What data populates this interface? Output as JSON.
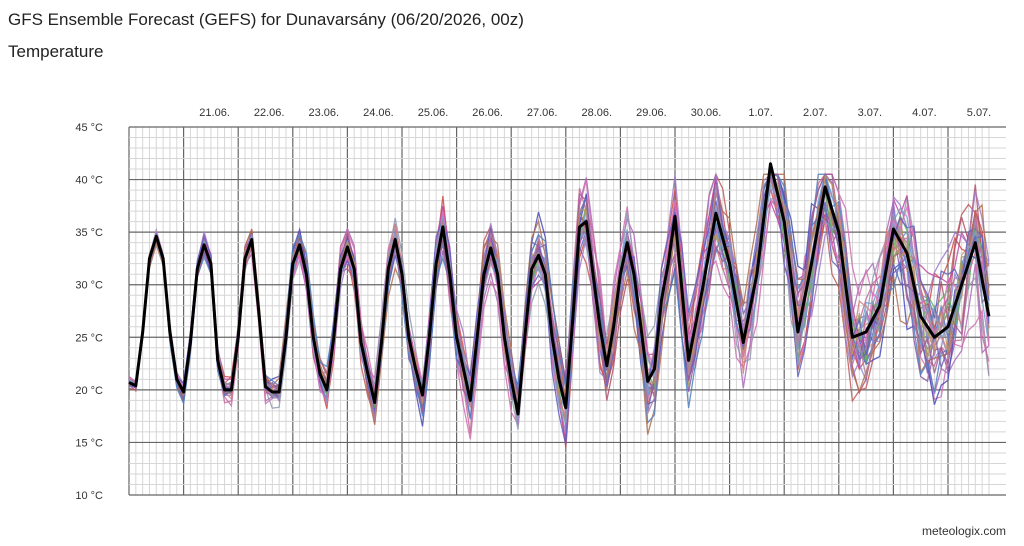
{
  "header": {
    "title": "GFS Ensemble Forecast (GEFS) for Dunavarsány (06/20/2026, 00z)",
    "subtitle": "Temperature"
  },
  "footer": {
    "credit": "meteologix.com"
  },
  "chart_data": {
    "type": "line",
    "title": "GFS Ensemble Forecast (GEFS) for Dunavarsány (06/20/2026, 00z)",
    "subtitle": "Temperature",
    "x_unit": "hours from 20.06. 00z",
    "x_range": [
      0,
      378
    ],
    "x_tick_labels": [
      "21.06.",
      "22.06.",
      "23.06.",
      "24.06.",
      "25.06.",
      "26.06.",
      "27.06.",
      "28.06.",
      "29.06.",
      "30.06.",
      "1.07.",
      "2.07.",
      "3.07.",
      "4.07.",
      "5.07."
    ],
    "y_tick_labels": [
      "10 °C",
      "15 °C",
      "20 °C",
      "25 °C",
      "30 °C",
      "35 °C",
      "40 °C",
      "45 °C"
    ],
    "y_ticks": [
      10,
      15,
      20,
      25,
      30,
      35,
      40,
      45
    ],
    "ylim": [
      10,
      45
    ],
    "grid": true,
    "legend": "none",
    "main_series": {
      "name": "",
      "color": "#000000",
      "x": [
        0,
        3,
        6,
        9,
        12,
        15,
        18,
        21,
        24,
        27,
        30,
        33,
        36,
        39,
        42,
        45,
        48,
        51,
        54,
        57,
        60,
        63,
        66,
        69,
        72,
        75,
        78,
        81,
        84,
        87,
        90,
        93,
        96,
        99,
        102,
        105,
        108,
        111,
        114,
        117,
        120,
        123,
        126,
        129,
        132,
        135,
        138,
        141,
        144,
        147,
        150,
        153,
        156,
        159,
        162,
        165,
        168,
        171,
        174,
        177,
        180,
        183,
        186,
        189,
        192,
        195,
        198,
        201,
        204,
        207,
        210,
        213,
        216,
        219,
        222,
        225,
        228,
        231,
        234,
        237,
        240,
        246,
        252,
        258,
        264,
        270,
        276,
        282,
        288,
        294,
        300,
        306,
        312,
        318,
        324,
        330,
        336,
        342,
        348,
        354,
        360,
        366,
        372,
        378
      ],
      "y": [
        20.7,
        20.4,
        25.5,
        32.5,
        34.6,
        32.5,
        25.5,
        21.0,
        19.8,
        24.5,
        31.5,
        33.8,
        32.0,
        22.8,
        20.0,
        20.0,
        25.0,
        32.5,
        34.3,
        27.5,
        20.3,
        19.8,
        19.8,
        25.0,
        32.0,
        33.8,
        31.0,
        25.0,
        21.5,
        20.0,
        25.0,
        31.5,
        33.6,
        31.5,
        24.5,
        21.5,
        18.8,
        24.5,
        31.5,
        34.3,
        31.0,
        25.0,
        22.0,
        19.5,
        25.0,
        32.0,
        35.5,
        31.0,
        25.0,
        22.0,
        19.0,
        25.0,
        31.0,
        33.5,
        31.0,
        25.0,
        21.0,
        17.7,
        25.0,
        31.5,
        32.8,
        31.0,
        25.0,
        21.0,
        18.3,
        26.5,
        35.5,
        36.0,
        31.0,
        26.0,
        22.3,
        26.0,
        31.0,
        34.0,
        31.0,
        26.0,
        20.8,
        22.0,
        28.5,
        32.0,
        36.5,
        22.8,
        29.5,
        36.8,
        32.0,
        24.5,
        31.0,
        41.5,
        36.0,
        25.5,
        32.0,
        39.3,
        35.0,
        25.0,
        25.5,
        28.0,
        35.3,
        33.0,
        27.0,
        25.0,
        26.0,
        30.0,
        34.0,
        27.0
      ]
    },
    "ensemble": {
      "member_count": 30,
      "colors": [
        "#5a5ac8",
        "#8a5aa8",
        "#c05a5a",
        "#5aaa5a",
        "#aa6ab8",
        "#6a8ac8",
        "#c8a07a",
        "#cc4a4a",
        "#8a8ad8",
        "#b0506a",
        "#7a7ad0",
        "#d070b0",
        "#909ab0",
        "#c86a9a",
        "#4a4ab8",
        "#a0a060",
        "#d08080",
        "#6aa0d0",
        "#c04aa0",
        "#a07ac8",
        "#60b060",
        "#b07050",
        "#7060b0",
        "#e070c0",
        "#5080c0",
        "#a05a90",
        "#c09060",
        "#6060c0",
        "#b080a0",
        "#80a0c0"
      ]
    }
  }
}
